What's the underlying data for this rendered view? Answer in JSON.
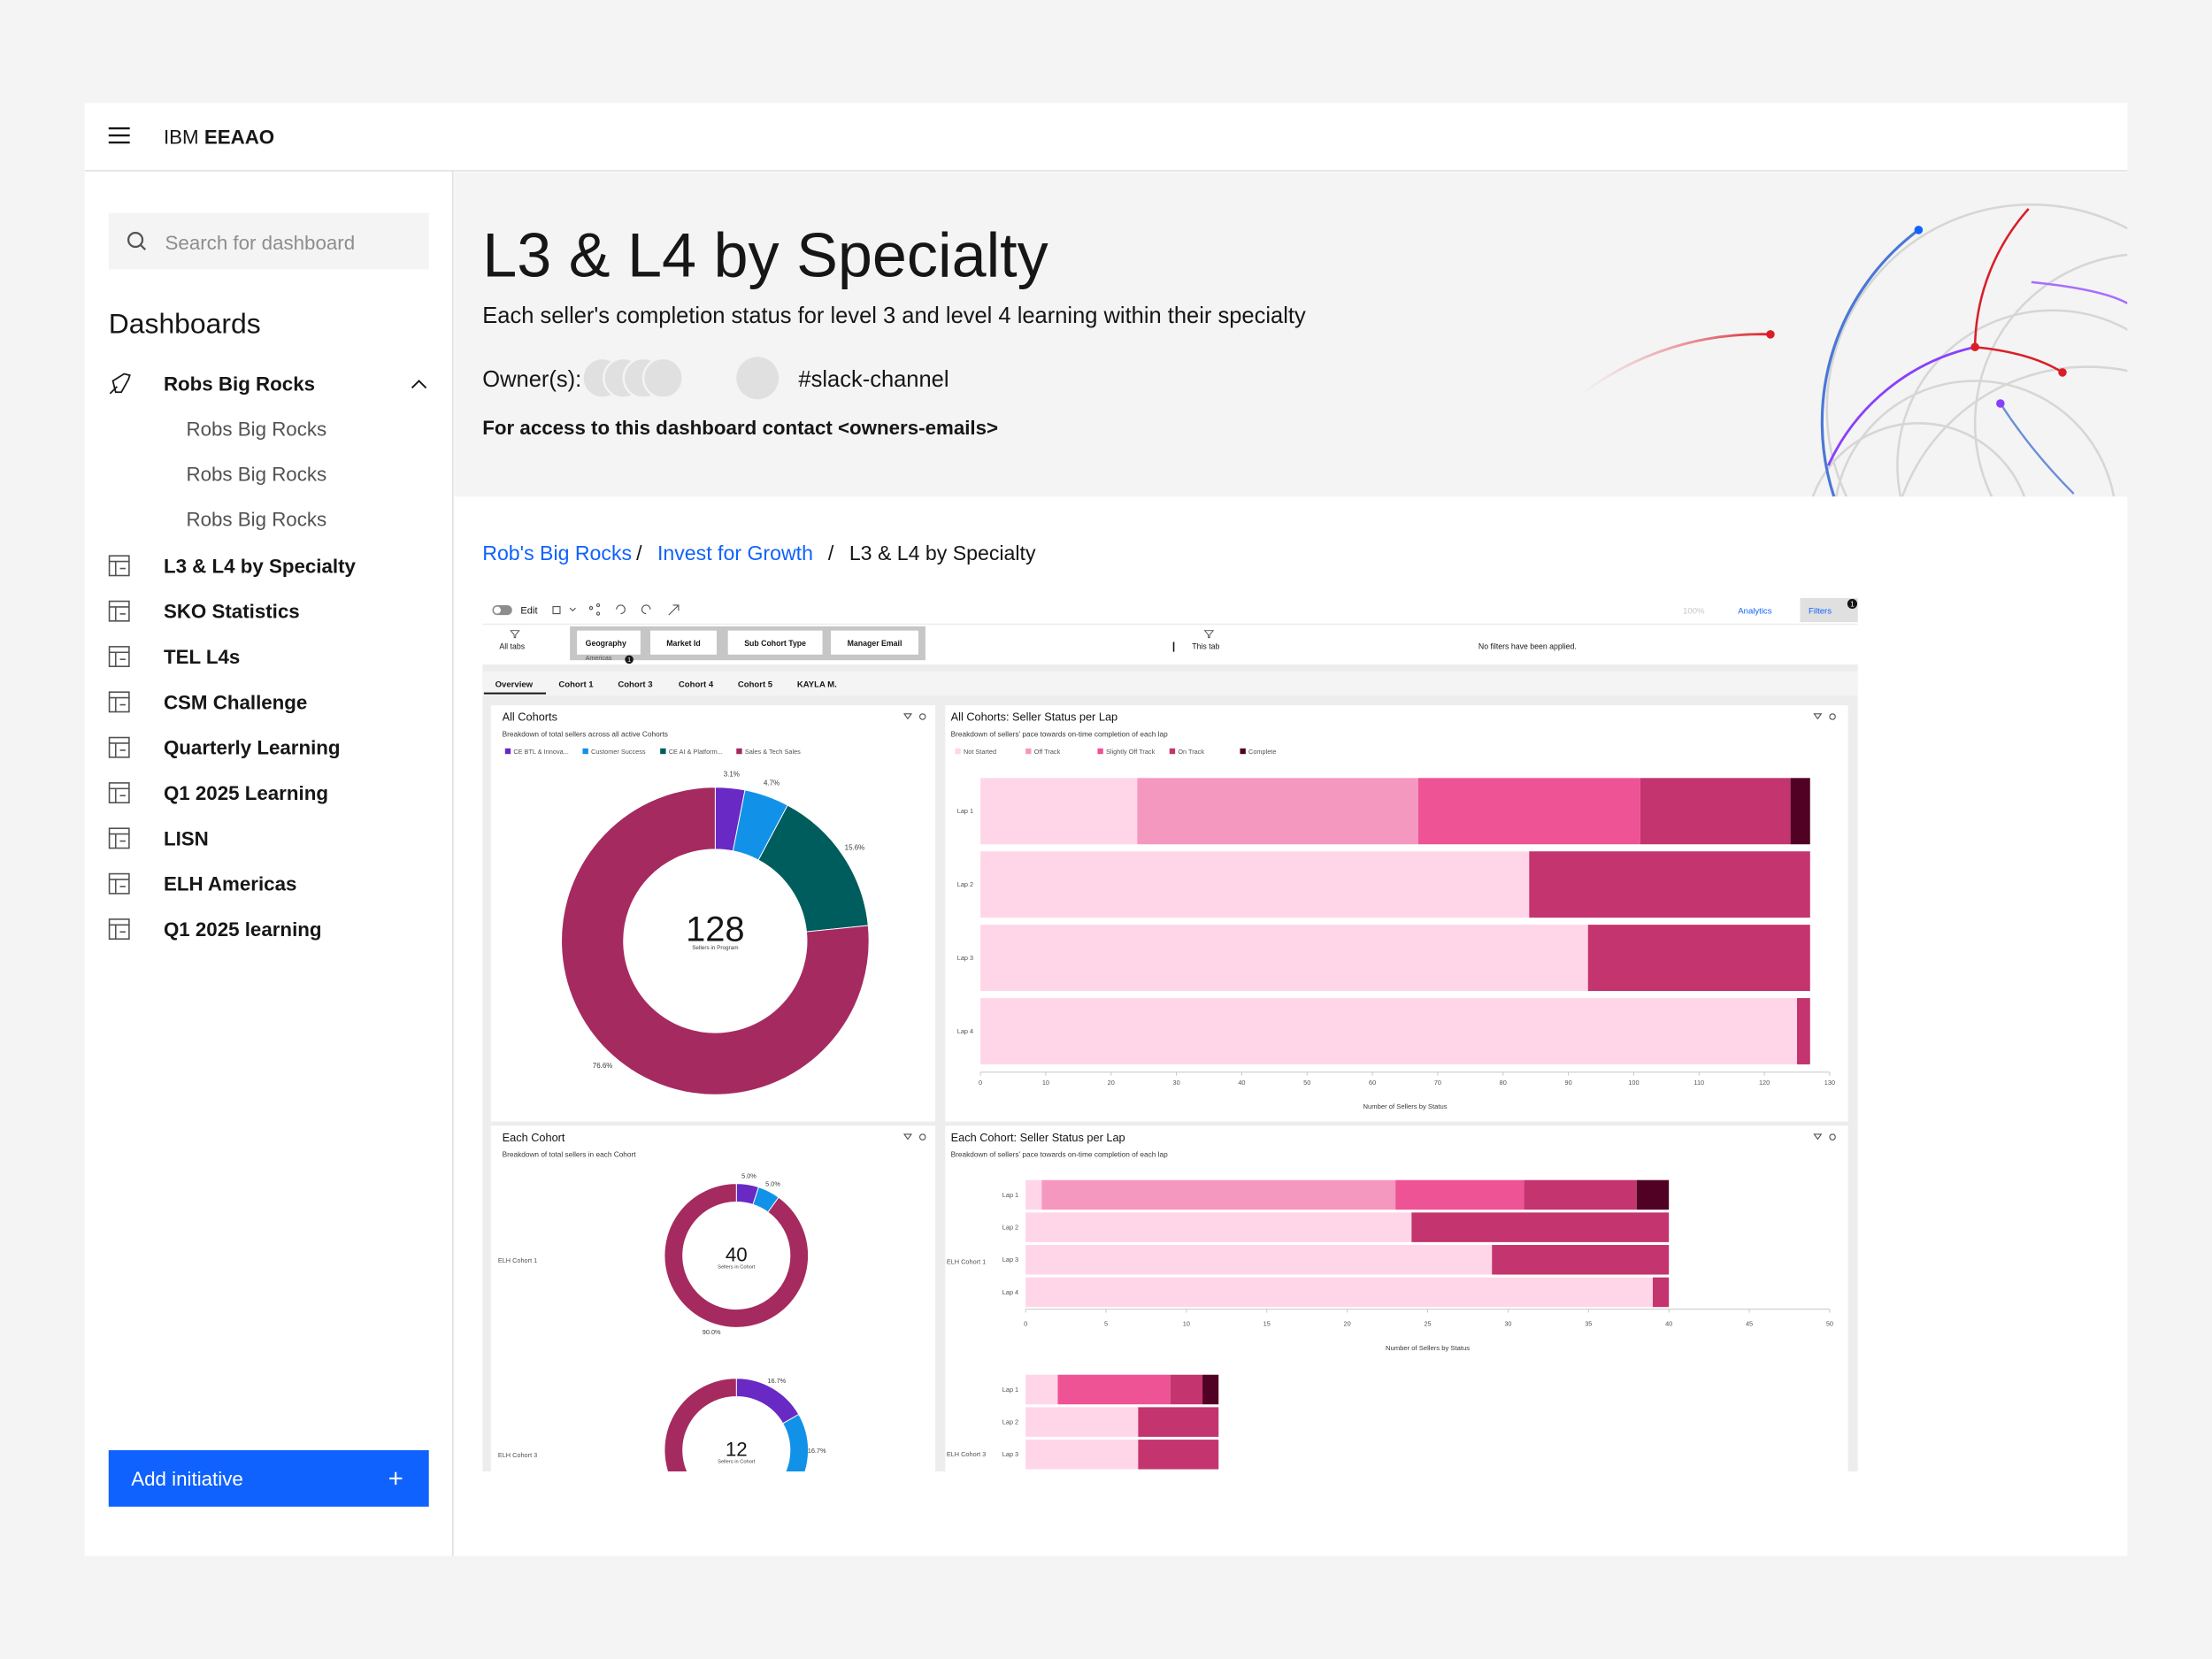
{
  "header": {
    "brand_prefix": "IBM",
    "brand_name": "EEAAO"
  },
  "sidebar": {
    "search_placeholder": "Search for dashboard",
    "heading": "Dashboards",
    "group": {
      "label": "Robs Big Rocks",
      "children": [
        "Robs Big Rocks",
        "Robs Big Rocks",
        "Robs Big Rocks"
      ]
    },
    "items": [
      "L3 & L4 by Specialty",
      "SKO Statistics",
      "TEL L4s",
      "CSM Challenge",
      "Quarterly Learning",
      "Q1 2025 Learning",
      "LISN",
      "ELH Americas",
      "Q1 2025 learning"
    ],
    "add_button": "Add initiative"
  },
  "hero": {
    "title": "L3 & L4 by Specialty",
    "subtitle": "Each seller's completion status for level 3 and level 4 learning within their specialty",
    "owners_label": "Owner(s):",
    "slack": "#slack-channel",
    "access": "For access to this dashboard contact <owners-emails>"
  },
  "breadcrumb": {
    "items": [
      "Rob's Big Rocks",
      "Invest for Growth",
      "L3 & L4 by Specialty"
    ],
    "separator": "/"
  },
  "toolbar": {
    "edit": "Edit",
    "zoom": "100%",
    "analytics": "Analytics",
    "filters": "Filters",
    "filters_badge": "1"
  },
  "filters": {
    "all_tabs": "All tabs",
    "chips": [
      {
        "label": "Geography",
        "value": "Americas",
        "badge": "1"
      },
      {
        "label": "Market Id"
      },
      {
        "label": "Sub Cohort Type"
      },
      {
        "label": "Manager Email"
      }
    ],
    "this_tab": "This tab",
    "empty": "No filters have been applied."
  },
  "tabs": [
    "Overview",
    "Cohort 1",
    "Cohort 3",
    "Cohort 4",
    "Cohort 5",
    "KAYLA M."
  ],
  "chart_data": [
    {
      "type": "donut",
      "title": "All Cohorts",
      "subtitle": "Breakdown of total sellers across all active Cohorts",
      "categories": [
        "CE BTL & Innova...",
        "Customer Success",
        "CE AI & Platform...",
        "Sales & Tech Sales"
      ],
      "values": [
        3.1,
        4.7,
        15.6,
        76.6
      ],
      "value_labels": [
        "3.1%",
        "4.7%",
        "15.6%",
        "76.6%"
      ],
      "colors": [
        "#6929c4",
        "#1192e8",
        "#005d5d",
        "#a52a5f"
      ],
      "center_value": 128,
      "center_label": "Sellers in Program"
    },
    {
      "type": "stacked_bar_h",
      "title": "All Cohorts: Seller Status per Lap",
      "subtitle": "Breakdown of sellers' pace towards on-time completion of each lap",
      "categories": [
        "Lap 1",
        "Lap 2",
        "Lap 3",
        "Lap 4"
      ],
      "series": [
        {
          "name": "Not Started",
          "color": "#ffd6e8",
          "values": [
            24,
            84,
            93,
            125
          ]
        },
        {
          "name": "Off Track",
          "color": "#f598c0",
          "values": [
            43,
            0,
            0,
            0
          ]
        },
        {
          "name": "Slightly Off Track",
          "color": "#ee5396",
          "values": [
            34,
            0,
            0,
            0
          ]
        },
        {
          "name": "On Track",
          "color": "#c4346f",
          "values": [
            23,
            43,
            34,
            2
          ]
        },
        {
          "name": "Complete",
          "color": "#510224",
          "values": [
            3,
            0,
            0,
            0
          ]
        }
      ],
      "xlim": [
        0,
        130
      ],
      "xticks": [
        0,
        10,
        20,
        30,
        40,
        50,
        60,
        70,
        80,
        90,
        100,
        110,
        120,
        130
      ],
      "x_label": "Number of Sellers by Status"
    },
    {
      "type": "donut_grid",
      "title": "Each Cohort",
      "subtitle": "Breakdown of total sellers in each Cohort",
      "colors": [
        "#6929c4",
        "#1192e8",
        "#a52a5f"
      ],
      "groups": [
        {
          "name": "ELH Cohort 1",
          "values": [
            5.0,
            5.0,
            90.0
          ],
          "value_labels": [
            "5.0%",
            "5.0%",
            "90.0%"
          ],
          "center_value": 40,
          "center_label": "Sellers in Cohort"
        },
        {
          "name": "ELH Cohort 3",
          "values": [
            16.7,
            16.7,
            66.6
          ],
          "value_labels": [
            "16.7%",
            "16.7%",
            null
          ],
          "center_value": 12,
          "center_label": "Sellers in Cohort"
        }
      ]
    },
    {
      "type": "stacked_bar_h_grid",
      "title": "Each Cohort: Seller Status per Lap",
      "subtitle": "Breakdown of sellers' pace towards on-time completion of each lap",
      "colors": [
        "#ffd6e8",
        "#f598c0",
        "#ee5396",
        "#c4346f",
        "#510224"
      ],
      "groups": [
        {
          "name": "ELH Cohort 1",
          "categories": [
            "Lap 1",
            "Lap 2",
            "Lap 3",
            "Lap 4"
          ],
          "series": [
            {
              "values": [
                1,
                24,
                29,
                39
              ]
            },
            {
              "values": [
                22,
                0,
                0,
                0
              ]
            },
            {
              "values": [
                8,
                0,
                0,
                0
              ]
            },
            {
              "values": [
                7,
                16,
                11,
                1
              ]
            },
            {
              "values": [
                2,
                0,
                0,
                0
              ]
            }
          ]
        },
        {
          "name": "ELH Cohort 3",
          "categories": [
            "Lap 1",
            "Lap 2",
            "Lap 3"
          ],
          "series": [
            {
              "values": [
                2,
                7,
                7
              ]
            },
            {
              "values": [
                0,
                0,
                0
              ]
            },
            {
              "values": [
                7,
                0,
                0
              ]
            },
            {
              "values": [
                2,
                5,
                5
              ]
            },
            {
              "values": [
                1,
                0,
                0
              ]
            }
          ]
        }
      ],
      "xlim": [
        0,
        50
      ],
      "xticks": [
        0,
        5,
        10,
        15,
        20,
        25,
        30,
        35,
        40,
        45,
        50
      ],
      "x_label": "Number of Sellers by Status"
    }
  ]
}
